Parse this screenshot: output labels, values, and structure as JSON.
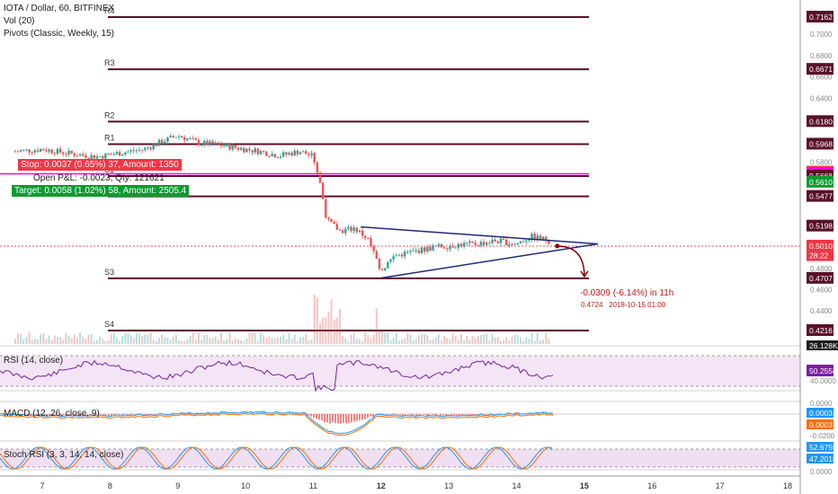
{
  "header": {
    "symbol_line": "IOTA / Dollar, 60, BITFINEX",
    "vol_label": "Vol (20)",
    "pivots_label": "Pivots (Classic, Weekly, 15)"
  },
  "orders": {
    "stop": "Stop: 0.0037 (0.65%) 37, Amount: 1350",
    "open": "Open P&L: -0.0023, Qty: 121621",
    "target": "Target: 0.0058 (1.02%) 58, Amount: 2505.4"
  },
  "projection": {
    "change": "-0.0309 (-6.14%) in 11h",
    "price": "0.4724",
    "date": "2018-10-15 01:00"
  },
  "pivots": [
    {
      "label": "R4",
      "value": 0.7162
    },
    {
      "label": "R3",
      "value": 0.6671
    },
    {
      "label": "R2",
      "value": 0.618
    },
    {
      "label": "R1",
      "value": 0.5968
    },
    {
      "label": "S1",
      "value": 0.5668
    },
    {
      "label": "S2",
      "value": 0.5477
    },
    {
      "label": "S3",
      "value": 0.4707
    },
    {
      "label": "S4",
      "value": 0.4216
    }
  ],
  "price_tags": [
    {
      "text": "0.7162",
      "value": 0.7162,
      "color": "#5a0f28"
    },
    {
      "text": "0.6671",
      "value": 0.6671,
      "color": "#5a0f28"
    },
    {
      "text": "0.6180",
      "value": 0.618,
      "color": "#5a0f28"
    },
    {
      "text": "0.5968",
      "value": 0.5968,
      "color": "#5a0f28"
    },
    {
      "text": "0.5705",
      "value": 0.5705,
      "color": "#f23645"
    },
    {
      "text": "0.5689",
      "value": 0.5689,
      "color": "#ff00e5"
    },
    {
      "text": "0.5668",
      "value": 0.5668,
      "color": "#5a0f28"
    },
    {
      "text": "0.5610",
      "value": 0.561,
      "color": "#0c9b2f"
    },
    {
      "text": "0.5477",
      "value": 0.5477,
      "color": "#5a0f28"
    },
    {
      "text": "0.5198",
      "value": 0.5198,
      "color": "#5a0f28"
    },
    {
      "text": "0.5010",
      "value": 0.501,
      "color": "#f23645"
    },
    {
      "text": "28:22",
      "value": 0.492,
      "color": "#f23645"
    },
    {
      "text": "0.4707",
      "value": 0.4707,
      "color": "#5a0f28"
    },
    {
      "text": "0.4216",
      "value": 0.4216,
      "color": "#5a0f28"
    }
  ],
  "right_axis_ticks": [
    "0.7000",
    "0.6800",
    "0.6600",
    "0.6400",
    "0.6200",
    "0.5800",
    "0.4800",
    "0.4600",
    "0.4400"
  ],
  "x_ticks": [
    "7",
    "8",
    "9",
    "10",
    "11",
    "12",
    "13",
    "14",
    "15",
    "16",
    "17",
    "18"
  ],
  "rsi": {
    "label": "RSI (14, close)",
    "value": "50.2558",
    "tick": "40.0000",
    "color": "#7b1fa2"
  },
  "macd": {
    "label": "MACD (12, 26, close, 9)",
    "value1": "0.0003",
    "value2": "0.0003",
    "tick_top": "0.0000",
    "tick_bottom": "-0.0200"
  },
  "stoch": {
    "label": "Stoch RSI (3, 3, 14, 14, close)",
    "value1": "52.6759",
    "value2": "47.2018",
    "tick": "0.0000"
  },
  "volume_tag": "26.128K",
  "colors": {
    "up": "#26a69a",
    "down": "#ef5350",
    "pivot": "#5a0f28",
    "stop": "#f23645",
    "target": "#0c9b2f",
    "open_line": "#ff00e5",
    "triangle": "#1e2a78"
  },
  "chart_data": {
    "type": "candlestick",
    "symbol": "IOTA / Dollar",
    "interval": "60",
    "exchange": "BITFINEX",
    "ylim": [
      0.4,
      0.72
    ],
    "x_range_days": [
      6.5,
      18.2
    ],
    "close_path": [
      {
        "day": 6.6,
        "price": 0.59
      },
      {
        "day": 7.0,
        "price": 0.592
      },
      {
        "day": 7.4,
        "price": 0.588
      },
      {
        "day": 7.8,
        "price": 0.585
      },
      {
        "day": 8.1,
        "price": 0.588
      },
      {
        "day": 8.5,
        "price": 0.592
      },
      {
        "day": 8.8,
        "price": 0.6
      },
      {
        "day": 9.0,
        "price": 0.605
      },
      {
        "day": 9.3,
        "price": 0.598
      },
      {
        "day": 9.6,
        "price": 0.596
      },
      {
        "day": 9.9,
        "price": 0.593
      },
      {
        "day": 10.2,
        "price": 0.59
      },
      {
        "day": 10.5,
        "price": 0.586
      },
      {
        "day": 10.8,
        "price": 0.59
      },
      {
        "day": 11.0,
        "price": 0.585
      },
      {
        "day": 11.1,
        "price": 0.56
      },
      {
        "day": 11.2,
        "price": 0.525
      },
      {
        "day": 11.4,
        "price": 0.515
      },
      {
        "day": 11.6,
        "price": 0.518
      },
      {
        "day": 11.8,
        "price": 0.508
      },
      {
        "day": 12.0,
        "price": 0.478
      },
      {
        "day": 12.2,
        "price": 0.492
      },
      {
        "day": 12.5,
        "price": 0.496
      },
      {
        "day": 12.8,
        "price": 0.5
      },
      {
        "day": 13.1,
        "price": 0.502
      },
      {
        "day": 13.4,
        "price": 0.503
      },
      {
        "day": 13.7,
        "price": 0.506
      },
      {
        "day": 14.0,
        "price": 0.503
      },
      {
        "day": 14.2,
        "price": 0.51
      },
      {
        "day": 14.5,
        "price": 0.506
      }
    ],
    "triangle": {
      "upper_start": [
        11.7,
        0.519
      ],
      "lower_start": [
        12.0,
        0.471
      ],
      "apex": [
        15.2,
        0.503
      ]
    },
    "projection_arrow": {
      "from": [
        14.6,
        0.501
      ],
      "to": [
        15.0,
        0.4724
      ]
    }
  }
}
